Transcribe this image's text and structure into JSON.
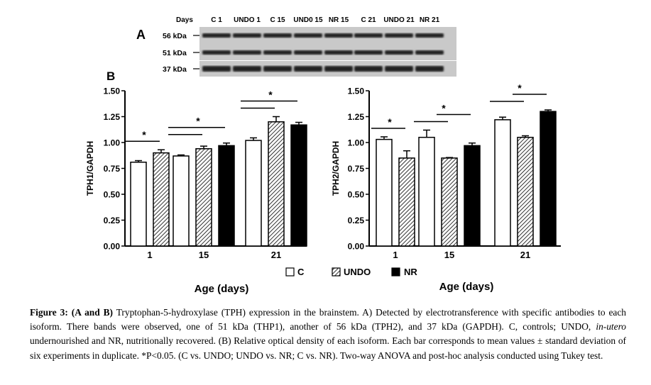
{
  "blot": {
    "panel_label": "A",
    "days_label": "Days",
    "lanes": [
      "C 1",
      "UNDO 1",
      "C 15",
      "UND0 15",
      "NR 15",
      "C 21",
      "UNDO 21",
      "NR 21"
    ],
    "markers": [
      "56 kDa",
      "51 kDa",
      "37 kDa"
    ]
  },
  "panel_b_label": "B",
  "legend": {
    "c": "C",
    "undo": "UNDO",
    "nr": "NR"
  },
  "colors": {
    "C": "#ffffff",
    "UNDO": "hatched",
    "NR": "#000000",
    "stroke": "#000000"
  },
  "chart_data": [
    {
      "type": "bar",
      "title": "",
      "xlabel": "Age (days)",
      "ylabel": "TPH1/GAPDH",
      "categories": [
        "1",
        "15",
        "21"
      ],
      "ylim": [
        0,
        1.5
      ],
      "yticks": [
        "0.00",
        "0.25",
        "0.50",
        "0.75",
        "1.00",
        "1.25",
        "1.50"
      ],
      "series": [
        {
          "name": "C",
          "values": [
            0.81,
            0.87,
            1.02
          ],
          "errors": [
            0.015,
            0.01,
            0.025
          ]
        },
        {
          "name": "UNDO",
          "values": [
            0.9,
            0.94,
            1.2
          ],
          "errors": [
            0.03,
            0.025,
            0.05
          ]
        },
        {
          "name": "NR",
          "values": [
            null,
            0.97,
            1.17
          ],
          "errors": [
            null,
            0.025,
            0.025
          ]
        }
      ],
      "significance": [
        {
          "group": "1",
          "comparisons": [
            "C vs. UNDO"
          ],
          "label": "*"
        },
        {
          "group": "15",
          "comparisons": [
            "C vs. UNDO",
            "C vs. NR"
          ],
          "label": "*"
        },
        {
          "group": "21",
          "comparisons": [
            "C vs. UNDO",
            "C vs. NR"
          ],
          "label": "*"
        }
      ]
    },
    {
      "type": "bar",
      "title": "",
      "xlabel": "Age (days)",
      "ylabel": "TPH2/GAPDH",
      "categories": [
        "1",
        "15",
        "21"
      ],
      "ylim": [
        0,
        1.5
      ],
      "yticks": [
        "0.00",
        "0.25",
        "0.50",
        "0.75",
        "1.00",
        "1.25",
        "1.50"
      ],
      "series": [
        {
          "name": "C",
          "values": [
            1.03,
            1.05,
            1.22
          ],
          "errors": [
            0.025,
            0.07,
            0.025
          ]
        },
        {
          "name": "UNDO",
          "values": [
            0.85,
            0.85,
            1.05
          ],
          "errors": [
            0.07,
            0.005,
            0.015
          ]
        },
        {
          "name": "NR",
          "values": [
            null,
            0.97,
            1.3
          ],
          "errors": [
            null,
            0.025,
            0.015
          ]
        }
      ],
      "significance": [
        {
          "group": "1",
          "comparisons": [
            "C vs. UNDO"
          ],
          "label": "*"
        },
        {
          "group": "15",
          "comparisons": [
            "C vs. UNDO",
            "UNDO vs. NR"
          ],
          "label": "*"
        },
        {
          "group": "21",
          "comparisons": [
            "C vs. UNDO",
            "UNDO vs. NR"
          ],
          "label": "*"
        }
      ]
    }
  ],
  "caption": {
    "figure_label": "Figure 3:",
    "figure_parts": "(A and B)",
    "p1": "Tryptophan-5-hydroxylase (TPH) expression in the brainstem. A) Detected by electrotransference with specific antibodies to each isoform. There bands were observed, one of 51 kDa (THP1), another of 56 kDa (TPH2), and 37 kDa (GAPDH). C, controls; UNDO, ",
    "italic": "in-utero",
    "p2": " undernourished and NR, nutritionally recovered. (B) Relative optical density of each isoform. Each bar corresponds to mean values ± standard deviation of six experiments in duplicate. *P<0.05. (C vs. UNDO; UNDO vs. NR; C vs. NR).  Two-way ANOVA and post-hoc analysis conducted using Tukey test."
  }
}
